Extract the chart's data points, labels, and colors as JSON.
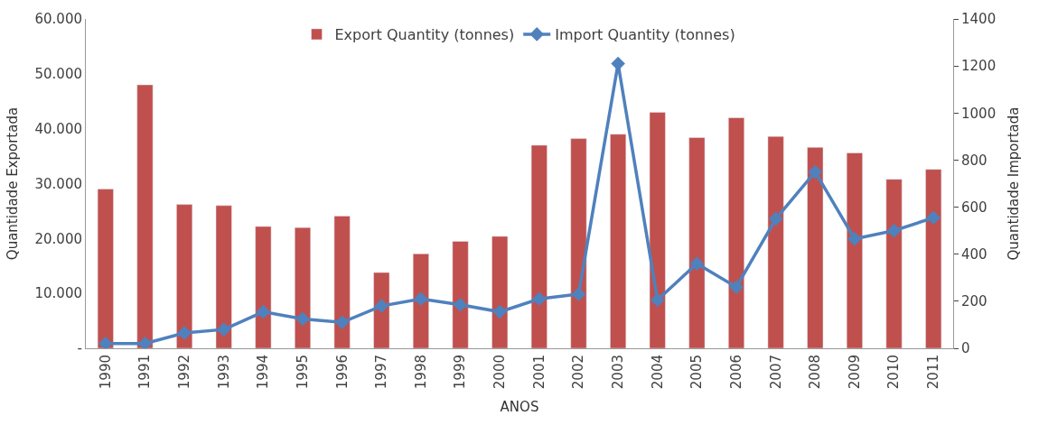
{
  "chart_data": {
    "type": "bar",
    "xlabel": "ANOS",
    "ylabel": "Quantidade Exportada",
    "y2label": "Quantidade Importada",
    "categories": [
      "1990",
      "1991",
      "1992",
      "1993",
      "1994",
      "1995",
      "1996",
      "1997",
      "1998",
      "1999",
      "2000",
      "2001",
      "2002",
      "2003",
      "2004",
      "2005",
      "2006",
      "2007",
      "2008",
      "2009",
      "2010",
      "2011"
    ],
    "series": [
      {
        "name": "Export Quantity (tonnes)",
        "color": "#c0504d",
        "values": [
          29000,
          48000,
          26200,
          26000,
          22200,
          22000,
          24100,
          13800,
          17200,
          19500,
          20400,
          37000,
          38200,
          39000,
          43000,
          38400,
          42000,
          38600,
          36600,
          35600,
          30800,
          32600
        ]
      },
      {
        "name": "Import Quantity (tonnes)",
        "type": "line",
        "axis": "y2",
        "color": "#4f81bd",
        "marker": "diamond",
        "line_style": "solid",
        "values": [
          20,
          20,
          65,
          80,
          155,
          125,
          110,
          180,
          210,
          185,
          155,
          210,
          230,
          1210,
          205,
          360,
          260,
          550,
          750,
          465,
          500,
          555
        ]
      }
    ],
    "ylim": [
      0,
      60000
    ],
    "yticks": [
      {
        "value": 0,
        "label": "-"
      },
      {
        "value": 10000,
        "label": "10.000"
      },
      {
        "value": 20000,
        "label": "20.000"
      },
      {
        "value": 30000,
        "label": "30.000"
      },
      {
        "value": 40000,
        "label": "40.000"
      },
      {
        "value": 50000,
        "label": "50.000"
      },
      {
        "value": 60000,
        "label": "60.000"
      }
    ],
    "y2lim": [
      0,
      1400
    ],
    "y2ticks": [
      0,
      200,
      400,
      600,
      800,
      1000,
      1200,
      1400
    ],
    "legend": "top"
  }
}
